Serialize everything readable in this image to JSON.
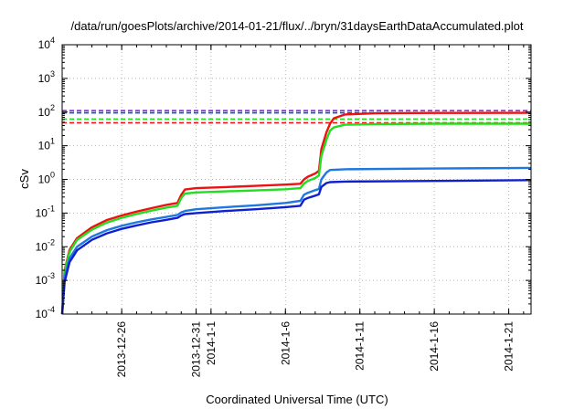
{
  "chart_data": {
    "type": "line",
    "title": "/data/run/goesPlots/archive/2014-01-21/flux/../bryn/31daysEarthDataAccumulated.plot",
    "xlabel": "Coordinated Universal Time (UTC)",
    "ylabel": "cSv",
    "yscale": "log",
    "ylim": [
      0.0001,
      10000
    ],
    "xlim": [
      "2013-12-22",
      "2014-01-22T12:00"
    ],
    "grid": true,
    "x_ticks": [
      {
        "label_lines": [
          "2013-12-26"
        ],
        "date": "2013-12-26"
      },
      {
        "label_lines": [
          "2013-12-31"
        ],
        "date": "2013-12-31"
      },
      {
        "label_lines": [
          "2014-1-1"
        ],
        "date": "2014-01-01"
      },
      {
        "label_lines": [
          "2014-1-6"
        ],
        "date": "2014-01-06"
      },
      {
        "label_lines": [
          "2014-1-11"
        ],
        "date": "2014-01-11"
      },
      {
        "label_lines": [
          "2014-1-16"
        ],
        "date": "2014-01-16"
      },
      {
        "label_lines": [
          "2014-1-21"
        ],
        "date": "2014-01-21"
      }
    ],
    "y_ticks": [
      {
        "base": "10",
        "exp": "-4",
        "value": 0.0001
      },
      {
        "base": "10",
        "exp": "-3",
        "value": 0.001
      },
      {
        "base": "10",
        "exp": "-2",
        "value": 0.01
      },
      {
        "base": "10",
        "exp": "-1",
        "value": 0.1
      },
      {
        "base": "10",
        "exp": "0",
        "value": 1
      },
      {
        "base": "10",
        "exp": "1",
        "value": 10
      },
      {
        "base": "10",
        "exp": "2",
        "value": 100
      },
      {
        "base": "10",
        "exp": "3",
        "value": 1000
      },
      {
        "base": "10",
        "exp": "4",
        "value": 10000
      }
    ],
    "reference_lines": [
      {
        "value": 110,
        "color": "#8a2be2"
      },
      {
        "value": 95,
        "color": "#1f3fd6"
      },
      {
        "value": 62,
        "color": "#22dd22"
      },
      {
        "value": 48,
        "color": "#ee1111"
      }
    ],
    "series": [
      {
        "color": "#ee1111",
        "points": [
          [
            "2013-12-22",
            0.0001
          ],
          [
            "2013-12-22T04:00",
            0.002
          ],
          [
            "2013-12-22T12:00",
            0.008
          ],
          [
            "2013-12-23",
            0.018
          ],
          [
            "2013-12-24",
            0.038
          ],
          [
            "2013-12-25",
            0.062
          ],
          [
            "2013-12-26",
            0.085
          ],
          [
            "2013-12-27",
            0.11
          ],
          [
            "2013-12-28",
            0.14
          ],
          [
            "2013-12-29",
            0.175
          ],
          [
            "2013-12-29T18:00",
            0.2
          ],
          [
            "2013-12-30",
            0.35
          ],
          [
            "2013-12-30T06:00",
            0.5
          ],
          [
            "2013-12-31",
            0.55
          ],
          [
            "2014-01-02",
            0.59
          ],
          [
            "2014-01-04",
            0.64
          ],
          [
            "2014-01-06",
            0.7
          ],
          [
            "2014-01-07",
            0.74
          ],
          [
            "2014-01-07T06:00",
            1.0
          ],
          [
            "2014-01-07T12:00",
            1.2
          ],
          [
            "2014-01-08",
            1.5
          ],
          [
            "2014-01-08T06:00",
            1.8
          ],
          [
            "2014-01-08T10:00",
            8
          ],
          [
            "2014-01-08T18:00",
            25
          ],
          [
            "2014-01-09",
            45
          ],
          [
            "2014-01-09T06:00",
            65
          ],
          [
            "2014-01-10",
            85
          ],
          [
            "2014-01-12",
            92
          ],
          [
            "2014-01-16",
            94
          ],
          [
            "2014-01-22T12:00",
            95
          ]
        ]
      },
      {
        "color": "#22dd22",
        "points": [
          [
            "2013-12-22",
            0.0001
          ],
          [
            "2013-12-22T04:00",
            0.0018
          ],
          [
            "2013-12-22T12:00",
            0.007
          ],
          [
            "2013-12-23",
            0.016
          ],
          [
            "2013-12-24",
            0.032
          ],
          [
            "2013-12-25",
            0.052
          ],
          [
            "2013-12-26",
            0.072
          ],
          [
            "2013-12-27",
            0.093
          ],
          [
            "2013-12-28",
            0.118
          ],
          [
            "2013-12-29",
            0.145
          ],
          [
            "2013-12-29T18:00",
            0.165
          ],
          [
            "2013-12-30",
            0.28
          ],
          [
            "2013-12-30T06:00",
            0.38
          ],
          [
            "2013-12-31",
            0.41
          ],
          [
            "2014-01-02",
            0.44
          ],
          [
            "2014-01-04",
            0.47
          ],
          [
            "2014-01-06",
            0.51
          ],
          [
            "2014-01-07",
            0.55
          ],
          [
            "2014-01-07T06:00",
            0.75
          ],
          [
            "2014-01-07T12:00",
            0.9
          ],
          [
            "2014-01-08",
            1.1
          ],
          [
            "2014-01-08T06:00",
            1.3
          ],
          [
            "2014-01-08T10:00",
            5
          ],
          [
            "2014-01-08T18:00",
            15
          ],
          [
            "2014-01-09",
            28
          ],
          [
            "2014-01-09T06:00",
            35
          ],
          [
            "2014-01-10",
            42
          ],
          [
            "2014-01-12",
            44
          ],
          [
            "2014-01-16",
            45
          ],
          [
            "2014-01-22T12:00",
            45
          ]
        ]
      },
      {
        "color": "#1e78e0",
        "points": [
          [
            "2013-12-22",
            0.0001
          ],
          [
            "2013-12-22T04:00",
            0.0012
          ],
          [
            "2013-12-22T12:00",
            0.0045
          ],
          [
            "2013-12-23",
            0.01
          ],
          [
            "2013-12-24",
            0.02
          ],
          [
            "2013-12-25",
            0.031
          ],
          [
            "2013-12-26",
            0.042
          ],
          [
            "2013-12-27",
            0.053
          ],
          [
            "2013-12-28",
            0.065
          ],
          [
            "2013-12-29",
            0.077
          ],
          [
            "2013-12-29T18:00",
            0.088
          ],
          [
            "2013-12-30",
            0.105
          ],
          [
            "2013-12-30T06:00",
            0.115
          ],
          [
            "2013-12-31",
            0.13
          ],
          [
            "2014-01-02",
            0.15
          ],
          [
            "2014-01-04",
            0.17
          ],
          [
            "2014-01-06",
            0.2
          ],
          [
            "2014-01-07",
            0.23
          ],
          [
            "2014-01-07T06:00",
            0.35
          ],
          [
            "2014-01-07T12:00",
            0.4
          ],
          [
            "2014-01-08",
            0.48
          ],
          [
            "2014-01-08T06:00",
            0.52
          ],
          [
            "2014-01-08T10:00",
            1.0
          ],
          [
            "2014-01-08T18:00",
            1.6
          ],
          [
            "2014-01-09",
            1.9
          ],
          [
            "2014-01-10",
            2.0
          ],
          [
            "2014-01-16",
            2.1
          ],
          [
            "2014-01-22T12:00",
            2.2
          ]
        ]
      },
      {
        "color": "#1020d0",
        "points": [
          [
            "2013-12-22",
            0.0001
          ],
          [
            "2013-12-22T04:00",
            0.0009
          ],
          [
            "2013-12-22T12:00",
            0.0035
          ],
          [
            "2013-12-23",
            0.0078
          ],
          [
            "2013-12-24",
            0.016
          ],
          [
            "2013-12-25",
            0.025
          ],
          [
            "2013-12-26",
            0.034
          ],
          [
            "2013-12-27",
            0.043
          ],
          [
            "2013-12-28",
            0.053
          ],
          [
            "2013-12-29",
            0.063
          ],
          [
            "2013-12-29T18:00",
            0.072
          ],
          [
            "2013-12-30",
            0.085
          ],
          [
            "2013-12-30T06:00",
            0.093
          ],
          [
            "2013-12-31",
            0.1
          ],
          [
            "2014-01-02",
            0.115
          ],
          [
            "2014-01-04",
            0.13
          ],
          [
            "2014-01-06",
            0.15
          ],
          [
            "2014-01-07",
            0.165
          ],
          [
            "2014-01-07T06:00",
            0.25
          ],
          [
            "2014-01-07T12:00",
            0.28
          ],
          [
            "2014-01-08",
            0.33
          ],
          [
            "2014-01-08T06:00",
            0.36
          ],
          [
            "2014-01-08T10:00",
            0.6
          ],
          [
            "2014-01-08T18:00",
            0.78
          ],
          [
            "2014-01-09",
            0.83
          ],
          [
            "2014-01-10",
            0.86
          ],
          [
            "2014-01-16",
            0.9
          ],
          [
            "2014-01-22T12:00",
            0.95
          ]
        ]
      }
    ]
  }
}
